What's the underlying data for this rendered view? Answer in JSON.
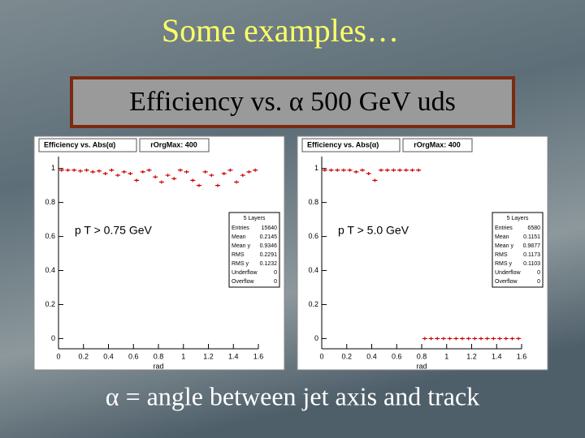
{
  "slide": {
    "title": "Some examples…",
    "box_title": "Efficiency vs. α 500 GeV uds",
    "footer": "α = angle between jet axis and track"
  },
  "chart_data": [
    {
      "type": "scatter",
      "title": "Efficiency vs. Abs(α)",
      "tab": "rOrgMax: 400",
      "annotation": "p T > 0.75 GeV",
      "x_label": "rad",
      "x": [
        0.025,
        0.075,
        0.125,
        0.175,
        0.225,
        0.275,
        0.325,
        0.375,
        0.425,
        0.475,
        0.525,
        0.575,
        0.625,
        0.675,
        0.725,
        0.775,
        0.825,
        0.875,
        0.925,
        0.975,
        1.025,
        1.075,
        1.125,
        1.175,
        1.225,
        1.275,
        1.325,
        1.375,
        1.425,
        1.475,
        1.525,
        1.575
      ],
      "series": [
        {
          "name": "5 Layers",
          "color": "#cc0000",
          "values": [
            0.99,
            0.99,
            0.99,
            0.985,
            0.99,
            0.98,
            0.985,
            0.97,
            0.99,
            0.96,
            0.98,
            0.97,
            0.93,
            0.98,
            0.99,
            0.95,
            0.92,
            0.96,
            0.94,
            0.99,
            0.98,
            0.93,
            0.9,
            0.98,
            0.96,
            0.9,
            0.97,
            0.99,
            0.92,
            0.96,
            0.98,
            0.99
          ]
        }
      ],
      "xlim": [
        0,
        1.6
      ],
      "ylim": [
        -0.06,
        1.07
      ],
      "xticks": [
        0,
        0.2,
        0.4,
        0.6,
        0.8,
        1,
        1.2,
        1.4,
        1.6
      ],
      "yticks": [
        0,
        0.2,
        0.4,
        0.6,
        0.8,
        1
      ],
      "stats_title": "5 Layers",
      "stats_labels": [
        "Entries",
        "Mean",
        "Mean y",
        "RMS",
        "RMS y",
        "Underflow",
        "Overflow"
      ],
      "stats_values": [
        15640,
        0.2145,
        0.9346,
        0.2291,
        0.1232,
        0,
        0
      ]
    },
    {
      "type": "scatter",
      "title": "Efficiency vs. Abs(α)",
      "tab": "rOrgMax: 400",
      "annotation": "p T > 5.0 GeV",
      "x_label": "rad",
      "x": [
        0.025,
        0.075,
        0.125,
        0.175,
        0.225,
        0.275,
        0.325,
        0.375,
        0.425,
        0.475,
        0.525,
        0.575,
        0.625,
        0.675,
        0.725,
        0.775,
        0.825,
        0.875,
        0.925,
        0.975,
        1.025,
        1.075,
        1.125,
        1.175,
        1.225,
        1.275,
        1.325,
        1.375,
        1.425,
        1.475,
        1.525,
        1.575
      ],
      "series": [
        {
          "name": "5 Layers",
          "color": "#cc0000",
          "values": [
            0.99,
            0.99,
            0.99,
            0.99,
            0.99,
            0.98,
            0.99,
            0.97,
            0.93,
            0.99,
            0.99,
            0.99,
            0.99,
            0.99,
            0.99,
            0.99,
            0,
            0,
            0,
            0,
            0,
            0,
            0,
            0,
            0,
            0,
            0,
            0,
            0,
            0,
            0,
            0
          ]
        }
      ],
      "xlim": [
        0,
        1.6
      ],
      "ylim": [
        -0.06,
        1.07
      ],
      "xticks": [
        0,
        0.2,
        0.4,
        0.6,
        0.8,
        1,
        1.2,
        1.4,
        1.6
      ],
      "yticks": [
        0,
        0.2,
        0.4,
        0.6,
        0.8,
        1
      ],
      "stats_title": "5 Layers",
      "stats_labels": [
        "Entries",
        "Mean",
        "Mean y",
        "RMS",
        "RMS y",
        "Underflow",
        "Overflow"
      ],
      "stats_values": [
        6580,
        0.1151,
        0.9877,
        0.1173,
        0.1103,
        0,
        0
      ]
    }
  ]
}
